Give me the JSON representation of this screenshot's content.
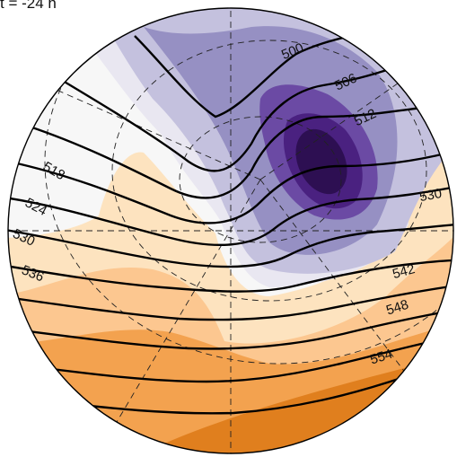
{
  "title": "t = -24 h",
  "chart_data": {
    "type": "contour",
    "projection": "polar-stereographic (circular map)",
    "graticule": "dashed",
    "filled_field": {
      "colormap": "PuOr (purple = low, orange = high)",
      "levels": [
        "#2d0f52",
        "#4a2180",
        "#6b4aa4",
        "#9690c3",
        "#c4c1de",
        "#e9e7f1",
        "#f7f7f7",
        "#fde3bf",
        "#fcc790",
        "#f3a24f",
        "#e07f1e"
      ]
    },
    "contour_lines": {
      "color": "#000000",
      "labels": [
        "500",
        "506",
        "512",
        "518",
        "524",
        "530",
        "530",
        "536",
        "542",
        "548",
        "554"
      ]
    }
  }
}
